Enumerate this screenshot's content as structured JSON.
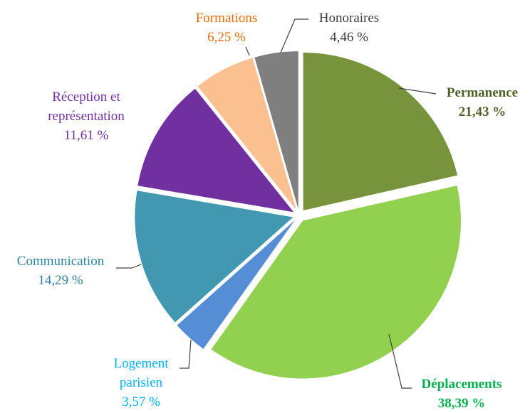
{
  "chart_data": {
    "type": "pie",
    "categories": [
      "Permanence",
      "Déplacements",
      "Logement parisien",
      "Communication",
      "Réception et représentation",
      "Formations",
      "Honoraires"
    ],
    "values": [
      21.43,
      38.39,
      3.57,
      14.29,
      11.61,
      6.25,
      4.46
    ],
    "value_labels": [
      "21,43 %",
      "38,39 %",
      "3,57 %",
      "14,29 %",
      "11,61 %",
      "6,25 %",
      "4,46 %"
    ],
    "colors": [
      "#77933c",
      "#92d050",
      "#558ed5",
      "#4298b0",
      "#7030a0",
      "#fac090",
      "#7f7f7f"
    ],
    "label_colors": [
      "#4f6228",
      "#00b050",
      "#00b0f0",
      "#31859c",
      "#7030a0",
      "#e46c0a",
      "#404040"
    ]
  }
}
